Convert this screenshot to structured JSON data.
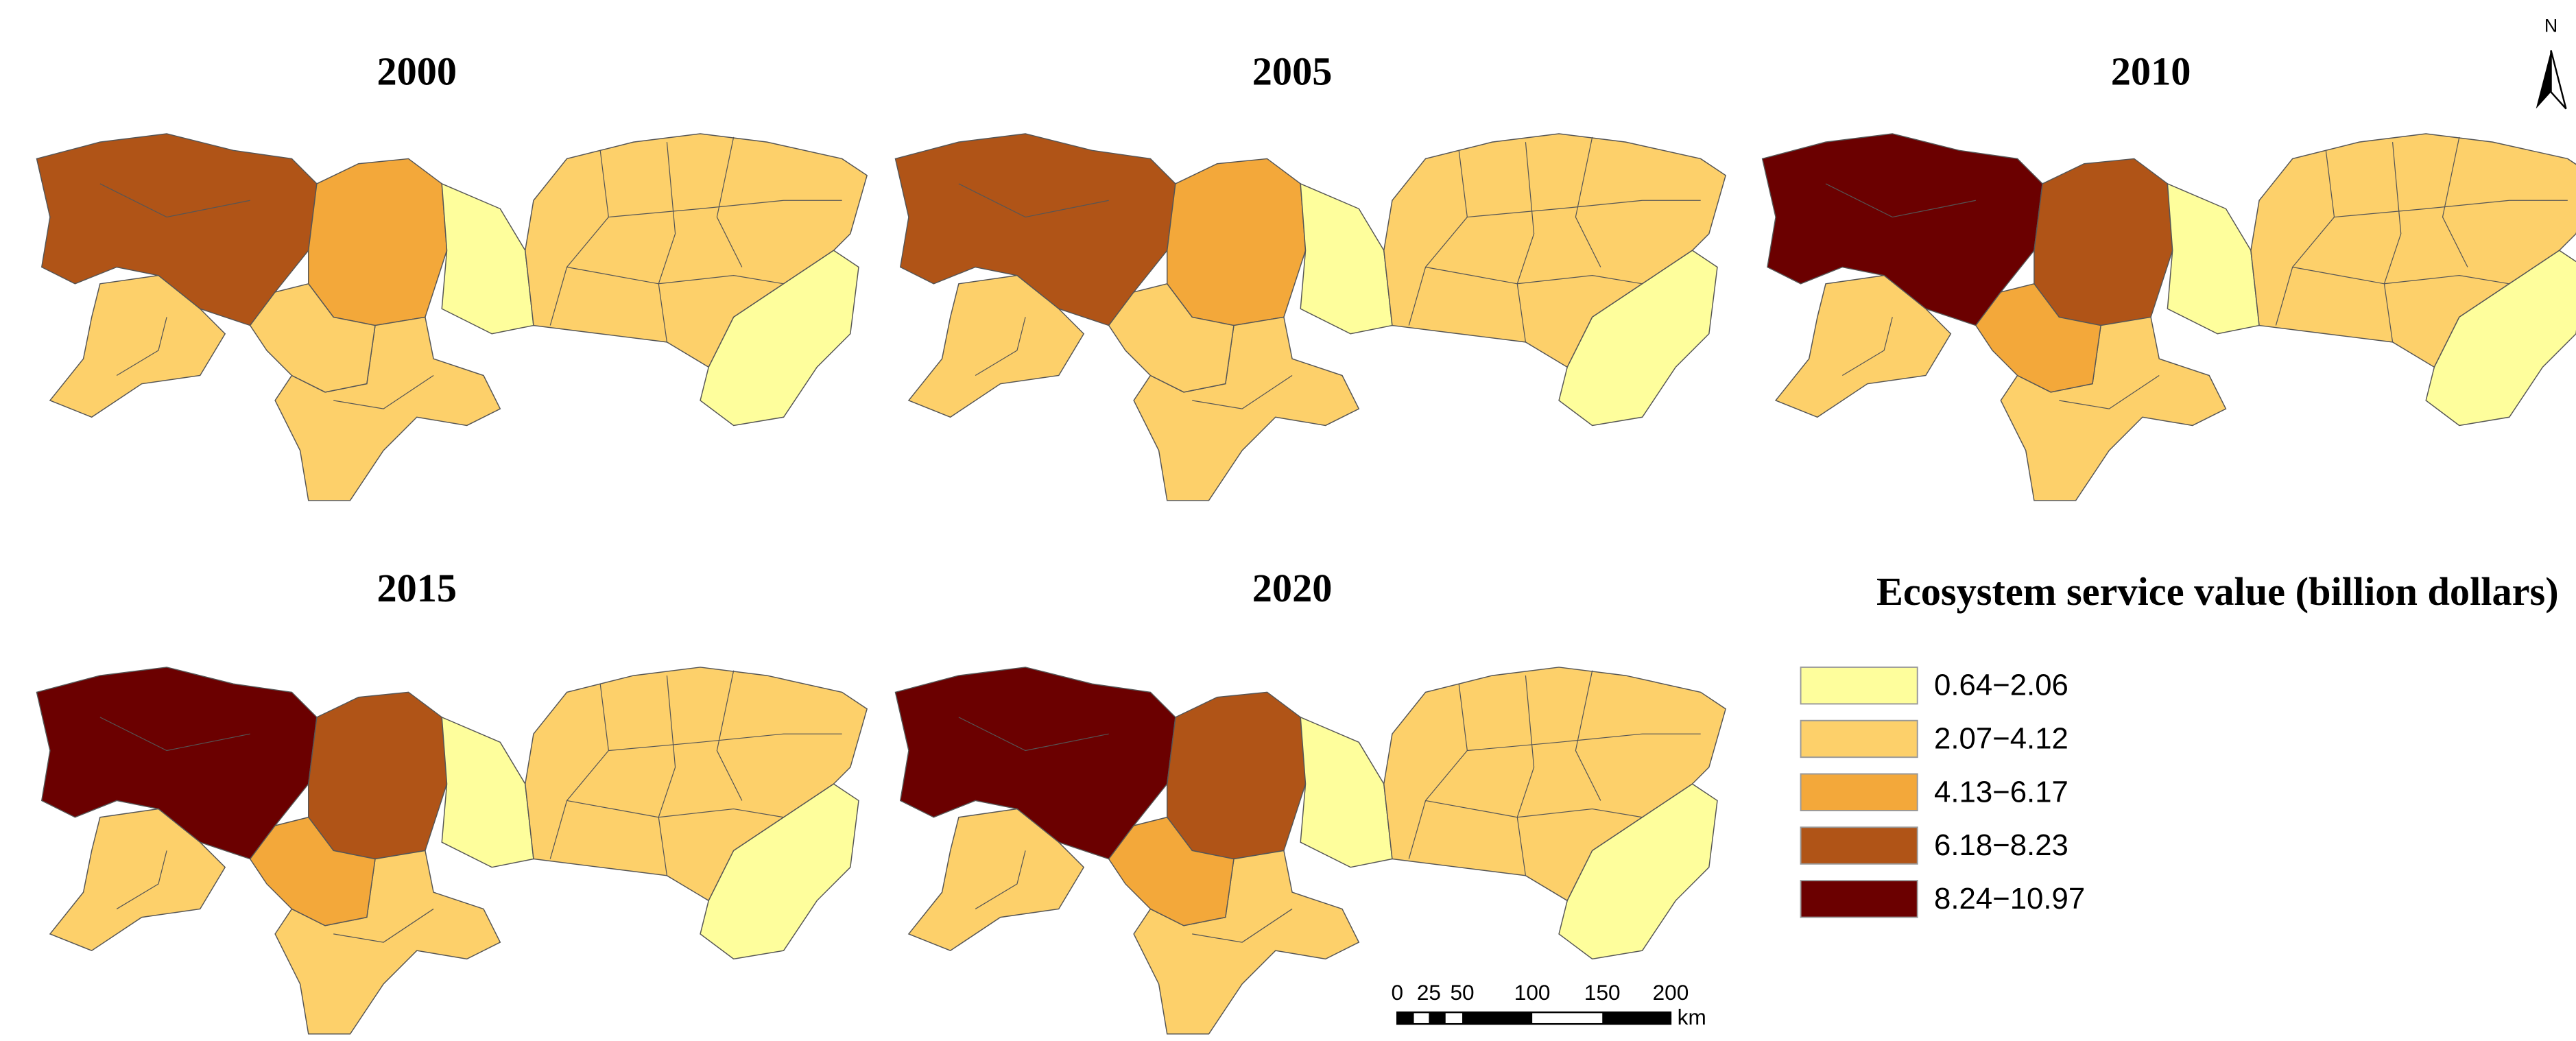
{
  "panels": [
    {
      "title": "2000",
      "fills": [
        3,
        2,
        1,
        1,
        1,
        0,
        1,
        0
      ]
    },
    {
      "title": "2005",
      "fills": [
        3,
        2,
        1,
        1,
        1,
        0,
        1,
        0
      ]
    },
    {
      "title": "2010",
      "fills": [
        4,
        3,
        1,
        1,
        2,
        0,
        1,
        0
      ]
    },
    {
      "title": "2015",
      "fills": [
        4,
        3,
        1,
        1,
        2,
        0,
        1,
        0
      ]
    },
    {
      "title": "2020",
      "fills": [
        4,
        3,
        1,
        1,
        2,
        0,
        1,
        0
      ]
    }
  ],
  "legend": {
    "title": "Ecosystem service value (billion dollars)",
    "items": [
      {
        "label": "0.64−2.06",
        "color": "#fefe9c"
      },
      {
        "label": "2.07−4.12",
        "color": "#fdd06a"
      },
      {
        "label": "4.13−6.17",
        "color": "#f3a83a"
      },
      {
        "label": "6.18−8.23",
        "color": "#b05417"
      },
      {
        "label": "8.24−10.97",
        "color": "#6b0000"
      }
    ]
  },
  "scale_bar": {
    "labels": [
      "0",
      "25",
      "50",
      "100",
      "150",
      "200"
    ],
    "unit": "km"
  },
  "north_label": "N"
}
